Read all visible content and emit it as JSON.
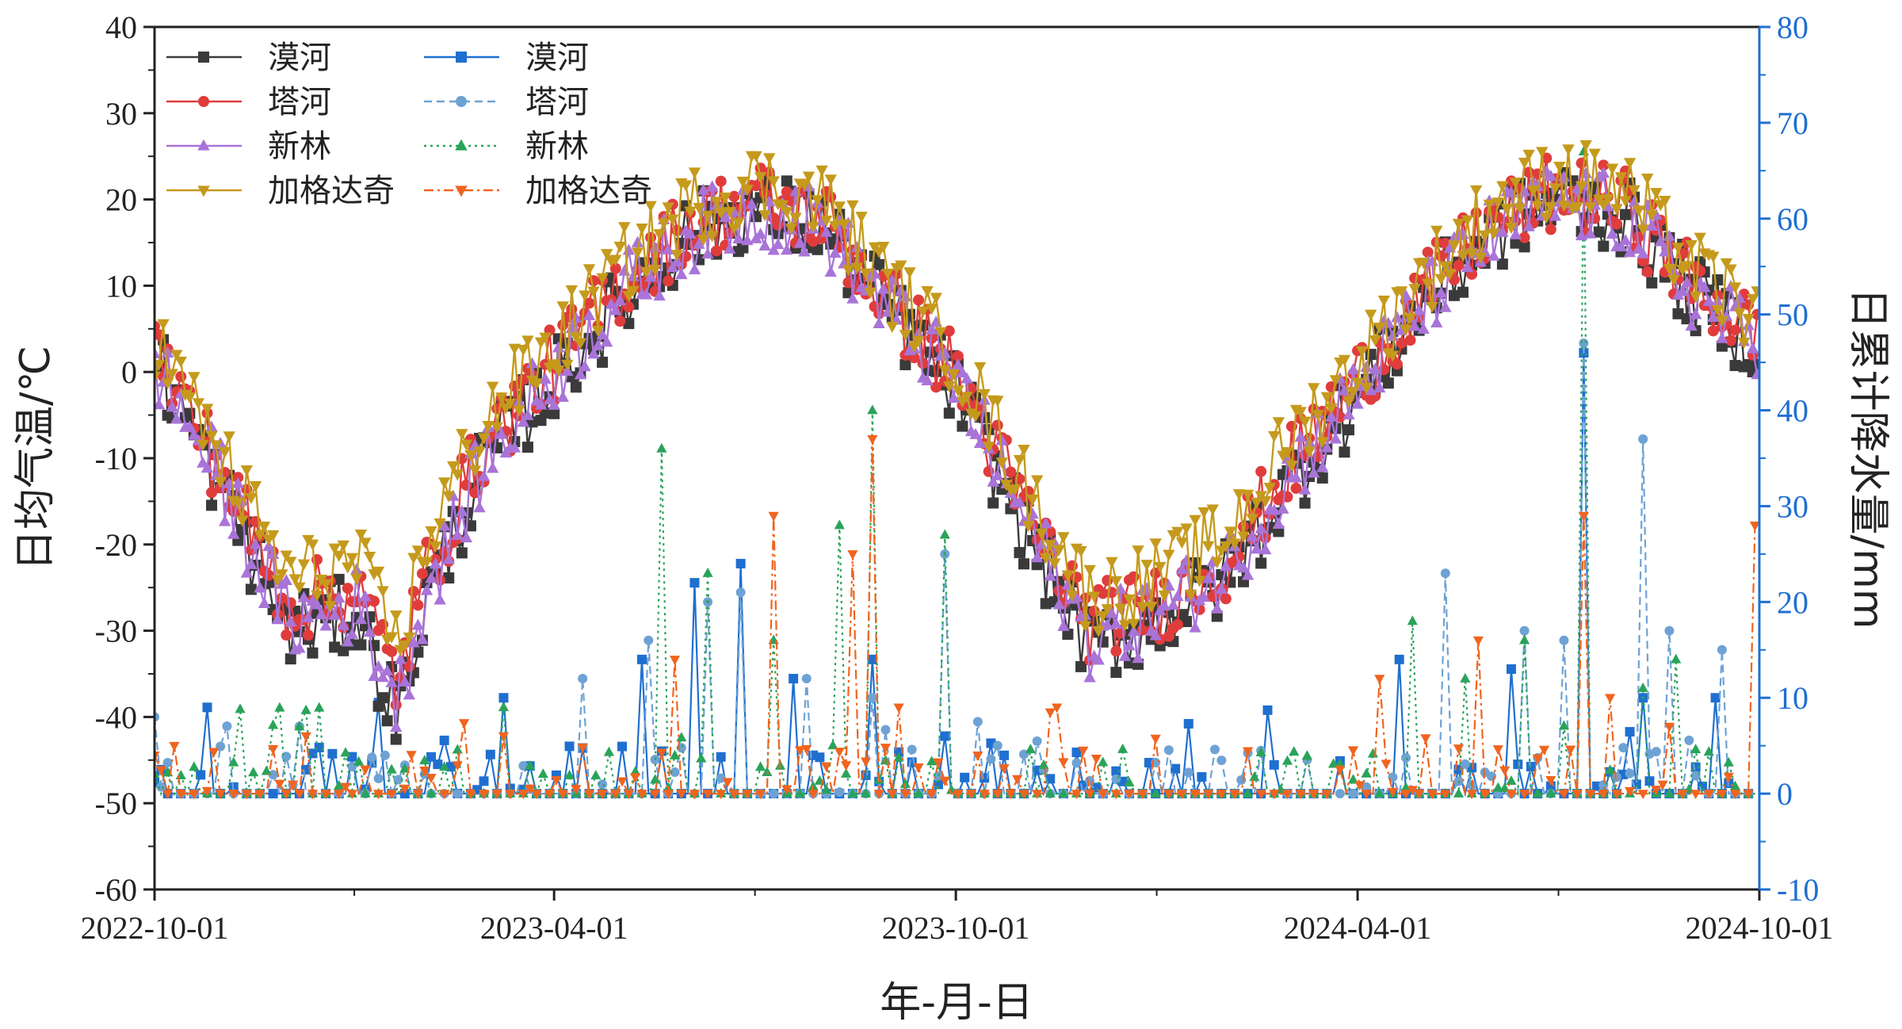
{
  "chart_data": {
    "type": "line",
    "xlabel": "年-月-日",
    "ylabel": "日均气温/℃",
    "ylabel_right": "日累计降水量/mm",
    "x_range": [
      "2022-10-01",
      "2024-10-01"
    ],
    "x_ticks": [
      "2022-10-01",
      "2023-04-01",
      "2023-10-01",
      "2024-04-01",
      "2024-10-01"
    ],
    "ylim": [
      -60,
      40
    ],
    "y_ticks": [
      -60,
      -50,
      -40,
      -30,
      -20,
      -10,
      0,
      10,
      20,
      30,
      40
    ],
    "ylim_right": [
      -10,
      80
    ],
    "y_ticks_right": [
      -10,
      0,
      10,
      20,
      30,
      40,
      50,
      60,
      70,
      80
    ],
    "grid": false,
    "legend_position": "top-left",
    "temperature_series": [
      {
        "name": "漠河",
        "color": "#3a3a3a",
        "marker": "square",
        "dates": [
          "2022-10-01",
          "2022-11-01",
          "2022-12-01",
          "2023-01-01",
          "2023-01-20",
          "2023-02-01",
          "2023-03-01",
          "2023-04-01",
          "2023-05-01",
          "2023-06-01",
          "2023-07-01",
          "2023-08-01",
          "2023-09-01",
          "2023-10-01",
          "2023-11-01",
          "2023-12-01",
          "2024-01-01",
          "2024-02-01",
          "2024-03-01",
          "2024-04-01",
          "2024-05-01",
          "2024-06-01",
          "2024-07-01",
          "2024-08-01",
          "2024-09-01",
          "2024-10-01"
        ],
        "values": [
          2,
          -14,
          -30,
          -28,
          -40,
          -27,
          -10,
          -1,
          8,
          16,
          19,
          17,
          7,
          -2,
          -18,
          -32,
          -29,
          -24,
          -13,
          -3,
          8,
          16,
          20,
          18,
          9,
          3
        ]
      },
      {
        "name": "塔河",
        "color": "#e03c3c",
        "marker": "circle",
        "dates": [
          "2022-10-01",
          "2022-11-01",
          "2022-12-01",
          "2023-01-01",
          "2023-01-20",
          "2023-02-01",
          "2023-03-01",
          "2023-04-01",
          "2023-05-01",
          "2023-06-01",
          "2023-07-01",
          "2023-08-01",
          "2023-09-01",
          "2023-10-01",
          "2023-11-01",
          "2023-12-01",
          "2024-01-01",
          "2024-02-01",
          "2024-03-01",
          "2024-04-01",
          "2024-05-01",
          "2024-06-01",
          "2024-07-01",
          "2024-08-01",
          "2024-09-01",
          "2024-10-01"
        ],
        "values": [
          3,
          -12,
          -27,
          -25,
          -36,
          -24,
          -8,
          1,
          10,
          17,
          20,
          18,
          8,
          0,
          -16,
          -29,
          -27,
          -22,
          -11,
          -1,
          9,
          17,
          21,
          19,
          10,
          4
        ]
      },
      {
        "name": "新林",
        "color": "#a974d8",
        "marker": "triangle-up",
        "dates": [
          "2022-10-01",
          "2022-11-01",
          "2022-12-01",
          "2023-01-01",
          "2023-01-20",
          "2023-02-01",
          "2023-03-01",
          "2023-04-01",
          "2023-05-01",
          "2023-06-01",
          "2023-07-01",
          "2023-08-01",
          "2023-09-01",
          "2023-10-01",
          "2023-11-01",
          "2023-12-01",
          "2024-01-01",
          "2024-02-01",
          "2024-03-01",
          "2024-04-01",
          "2024-05-01",
          "2024-06-01",
          "2024-07-01",
          "2024-08-01",
          "2024-09-01",
          "2024-10-01"
        ],
        "values": [
          1,
          -13,
          -29,
          -27,
          -38,
          -26,
          -10,
          0,
          9,
          16,
          19,
          17,
          7,
          -1,
          -17,
          -31,
          -28,
          -23,
          -12,
          -2,
          8,
          16,
          20,
          18,
          9,
          3
        ]
      },
      {
        "name": "加格达奇",
        "color": "#c59a1c",
        "marker": "triangle-down",
        "dates": [
          "2022-10-01",
          "2022-11-01",
          "2022-12-01",
          "2023-01-01",
          "2023-01-20",
          "2023-02-01",
          "2023-03-01",
          "2023-04-01",
          "2023-05-01",
          "2023-06-01",
          "2023-07-01",
          "2023-08-01",
          "2023-09-01",
          "2023-10-01",
          "2023-11-01",
          "2023-12-01",
          "2024-01-01",
          "2024-02-01",
          "2024-03-01",
          "2024-04-01",
          "2024-05-01",
          "2024-06-01",
          "2024-07-01",
          "2024-08-01",
          "2024-09-01",
          "2024-10-01"
        ],
        "values": [
          4,
          -10,
          -24,
          -22,
          -32,
          -20,
          -5,
          3,
          12,
          19,
          22,
          20,
          10,
          2,
          -13,
          -26,
          -24,
          -19,
          -8,
          1,
          11,
          19,
          23,
          21,
          12,
          6
        ]
      }
    ],
    "precipitation_series": [
      {
        "name": "漠河",
        "color": "#1f6fd1",
        "marker": "square",
        "dash": "solid",
        "dates": [
          "2022-10-01",
          "2022-10-25",
          "2023-01-10",
          "2023-03-10",
          "2023-05-10",
          "2023-06-05",
          "2023-06-25",
          "2023-07-20",
          "2023-08-25",
          "2023-09-25",
          "2024-04-20",
          "2024-06-10",
          "2024-07-12",
          "2024-08-10",
          "2024-09-10",
          "2024-10-01"
        ],
        "values": [
          1.2,
          9,
          9.5,
          10,
          14,
          22,
          24,
          12,
          14,
          6,
          14,
          13,
          46,
          10,
          10,
          2
        ]
      },
      {
        "name": "塔河",
        "color": "#6ea2d4",
        "marker": "circle",
        "dash": "dashed",
        "dates": [
          "2022-10-01",
          "2023-01-15",
          "2023-04-15",
          "2023-05-15",
          "2023-06-10",
          "2023-06-25",
          "2023-07-25",
          "2023-08-25",
          "2023-09-25",
          "2024-05-10",
          "2024-06-15",
          "2024-07-05",
          "2024-07-12",
          "2024-08-08",
          "2024-08-20",
          "2024-09-15"
        ],
        "values": [
          8,
          4,
          12,
          16,
          20,
          21,
          12,
          10,
          25,
          23,
          17,
          16,
          47,
          37,
          17,
          15
        ]
      },
      {
        "name": "新林",
        "color": "#2aa35a",
        "marker": "triangle-up",
        "dash": "dotted",
        "dates": [
          "2022-10-01",
          "2022-12-05",
          "2023-03-10",
          "2023-05-20",
          "2023-06-10",
          "2023-07-10",
          "2023-08-10",
          "2023-08-25",
          "2023-09-25",
          "2024-04-25",
          "2024-05-20",
          "2024-06-15",
          "2024-07-12",
          "2024-08-10",
          "2024-08-25",
          "2024-10-01"
        ],
        "values": [
          2,
          7,
          9,
          36,
          23,
          16,
          28,
          40,
          27,
          18,
          12,
          16,
          67,
          11,
          14,
          20
        ]
      },
      {
        "name": "加格达奇",
        "color": "#f0641e",
        "marker": "triangle-down",
        "dash": "dash-dot",
        "dates": [
          "2022-10-01",
          "2022-12-10",
          "2023-03-10",
          "2023-05-25",
          "2023-07-10",
          "2023-08-15",
          "2023-08-25",
          "2023-09-05",
          "2023-10-10",
          "2023-11-15",
          "2024-04-10",
          "2024-05-25",
          "2024-07-12",
          "2024-07-25",
          "2024-08-20",
          "2024-09-30"
        ],
        "values": [
          4,
          6,
          6,
          14,
          29,
          25,
          37,
          9,
          4,
          9,
          12,
          16,
          29,
          10,
          7,
          28
        ]
      }
    ]
  }
}
